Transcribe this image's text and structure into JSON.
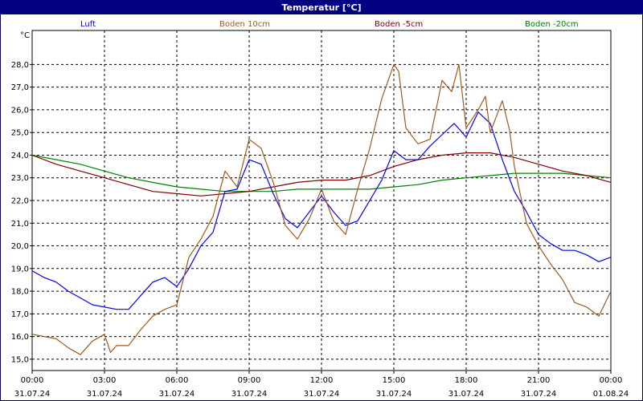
{
  "chart_data": {
    "type": "line",
    "title": "Temperatur [°C]",
    "ylabel": "°C",
    "ylim": [
      14.5,
      29.5
    ],
    "yticks": [
      "15,0",
      "16,0",
      "17,0",
      "18,0",
      "19,0",
      "20,0",
      "21,0",
      "22,0",
      "23,0",
      "24,0",
      "25,0",
      "26,0",
      "27,0",
      "28,0"
    ],
    "xlim_hours": [
      0,
      24
    ],
    "xticks": [
      {
        "time": "00:00",
        "date": "31.07.24"
      },
      {
        "time": "03:00",
        "date": "31.07.24"
      },
      {
        "time": "06:00",
        "date": "31.07.24"
      },
      {
        "time": "09:00",
        "date": "31.07.24"
      },
      {
        "time": "12:00",
        "date": "31.07.24"
      },
      {
        "time": "15:00",
        "date": "31.07.24"
      },
      {
        "time": "18:00",
        "date": "31.07.24"
      },
      {
        "time": "21:00",
        "date": "31.07.24"
      },
      {
        "time": "00:00",
        "date": "01.08.24"
      }
    ],
    "grid": true,
    "series": [
      {
        "name": "Luft",
        "color": "#0000ff",
        "x": [
          0,
          0.5,
          1,
          1.5,
          2,
          2.5,
          3,
          3.5,
          4,
          4.5,
          5,
          5.5,
          6,
          6.5,
          7,
          7.5,
          8,
          8.5,
          9,
          9.5,
          10,
          10.5,
          11,
          11.5,
          12,
          12.5,
          13,
          13.5,
          14,
          14.5,
          15,
          15.5,
          16,
          16.5,
          17,
          17.5,
          18,
          18.5,
          19,
          19.5,
          20,
          20.5,
          21,
          21.5,
          22,
          22.5,
          23,
          23.5,
          24
        ],
        "y": [
          18.9,
          18.6,
          18.4,
          18.0,
          17.7,
          17.4,
          17.3,
          17.2,
          17.2,
          17.8,
          18.4,
          18.6,
          18.2,
          19.0,
          20.0,
          20.6,
          22.4,
          22.5,
          23.8,
          23.6,
          22.3,
          21.2,
          20.8,
          21.5,
          22.2,
          21.5,
          20.9,
          21.1,
          22.0,
          22.9,
          24.2,
          23.8,
          23.8,
          24.4,
          24.9,
          25.4,
          24.8,
          25.9,
          25.4,
          23.8,
          22.4,
          21.5,
          20.5,
          20.1,
          19.8,
          19.8,
          19.6,
          19.3,
          19.5
        ]
      },
      {
        "name": "Boden 10cm",
        "color": "#a05a1e",
        "x": [
          0,
          0.5,
          1,
          1.5,
          2,
          2.5,
          3,
          3.25,
          3.5,
          4,
          4.5,
          5,
          5.5,
          6,
          6.5,
          7,
          7.5,
          8,
          8.5,
          9,
          9.5,
          10,
          10.5,
          11,
          11.5,
          12,
          12.5,
          13,
          13.5,
          14,
          14.5,
          15,
          15.2,
          15.5,
          16,
          16.5,
          17,
          17.4,
          17.7,
          18,
          18.5,
          18.8,
          19,
          19.5,
          19.8,
          20,
          20.5,
          21,
          21.5,
          22,
          22.5,
          23,
          23.5,
          24
        ],
        "y": [
          16.1,
          16.0,
          15.9,
          15.5,
          15.2,
          15.8,
          16.1,
          15.3,
          15.6,
          15.6,
          16.3,
          16.9,
          17.2,
          17.4,
          19.5,
          20.3,
          21.3,
          23.3,
          22.6,
          24.7,
          24.3,
          22.8,
          20.9,
          20.3,
          21.2,
          22.5,
          21.1,
          20.5,
          22.5,
          24.3,
          26.5,
          28.0,
          27.7,
          25.2,
          24.5,
          24.7,
          27.3,
          26.8,
          28.0,
          25.2,
          26.0,
          26.6,
          25.0,
          26.4,
          25.1,
          23.5,
          21.0,
          20.0,
          19.2,
          18.5,
          17.5,
          17.3,
          16.9,
          18.0
        ]
      },
      {
        "name": "Boden -5cm",
        "color": "#800000",
        "x": [
          0,
          1,
          2,
          3,
          4,
          5,
          6,
          7,
          8,
          9,
          10,
          11,
          12,
          13,
          14,
          15,
          16,
          17,
          18,
          19,
          20,
          21,
          22,
          23,
          24
        ],
        "y": [
          24.0,
          23.6,
          23.3,
          23.0,
          22.7,
          22.4,
          22.3,
          22.2,
          22.3,
          22.4,
          22.6,
          22.8,
          22.9,
          22.9,
          23.1,
          23.5,
          23.8,
          24.0,
          24.1,
          24.1,
          23.9,
          23.6,
          23.3,
          23.1,
          22.8
        ]
      },
      {
        "name": "Boden -20cm",
        "color": "#008000",
        "x": [
          0,
          1,
          2,
          3,
          4,
          5,
          6,
          7,
          8,
          9,
          10,
          11,
          12,
          13,
          14,
          15,
          16,
          17,
          18,
          19,
          20,
          21,
          22,
          23,
          24
        ],
        "y": [
          24.0,
          23.8,
          23.6,
          23.3,
          23.0,
          22.8,
          22.6,
          22.5,
          22.4,
          22.4,
          22.4,
          22.5,
          22.5,
          22.5,
          22.5,
          22.6,
          22.7,
          22.9,
          23.0,
          23.1,
          23.2,
          23.2,
          23.2,
          23.1,
          23.0
        ]
      }
    ]
  }
}
